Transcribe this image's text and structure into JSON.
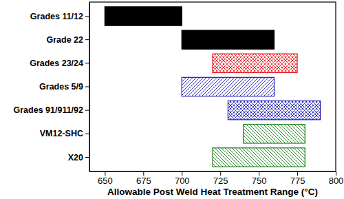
{
  "chart_data": {
    "type": "bar",
    "orientation": "horizontal",
    "x_label": "Allowable Post Weld Heat Treatment Range (°C)",
    "categories": [
      "Grades 11/12",
      "Grade 22",
      "Grades 23/24",
      "Grades 5/9",
      "Grades 91/911/92",
      "VM12-SHC",
      "X20"
    ],
    "values": [
      [
        650,
        700
      ],
      [
        700,
        760
      ],
      [
        720,
        775
      ],
      [
        700,
        760
      ],
      [
        730,
        790
      ],
      [
        740,
        780
      ],
      [
        720,
        780
      ]
    ],
    "colors": [
      "#000000",
      "#000000",
      "#e8191f",
      "#1f1fb4",
      "#1f1fb4",
      "#1a7f1a",
      "#1a7f1a"
    ],
    "xlim": [
      640,
      800
    ],
    "xticks": [
      650,
      675,
      700,
      725,
      750,
      775,
      800
    ],
    "grid": false
  }
}
